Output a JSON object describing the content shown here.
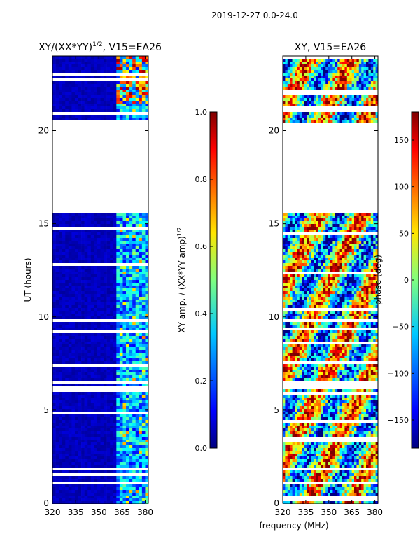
{
  "suptitle": "2019-12-27 0.0-24.0",
  "shared_xlabel": "frequency (MHz)",
  "chart_data": [
    {
      "type": "heatmap",
      "title_main": "XY/(XX*YY)",
      "title_sup": "1/2",
      "title_rest": ", V15=EA26",
      "ylabel": "UT (hours)",
      "xlim": [
        320,
        382
      ],
      "ylim": [
        0,
        24
      ],
      "xticks": [
        320,
        335,
        350,
        365,
        380
      ],
      "yticks": [
        0,
        5,
        10,
        15,
        20
      ],
      "data_gap_hours": [
        15.6,
        20.5
      ],
      "colorbar": {
        "label_main": "XY amp. / (XX*YY amp)",
        "label_sup": "1/2",
        "range": [
          0.0,
          1.0
        ],
        "ticks": [
          "0.0",
          "0.2",
          "0.4",
          "0.6",
          "0.8",
          "1.0"
        ],
        "colormap": "jet"
      }
    },
    {
      "type": "heatmap",
      "title": "XY, V15=EA26",
      "xlim": [
        320,
        382
      ],
      "ylim": [
        0,
        24
      ],
      "xticks": [
        320,
        335,
        350,
        365,
        380
      ],
      "yticks": [
        0,
        5,
        10,
        15,
        20
      ],
      "data_gap_hours": [
        15.6,
        20.5
      ],
      "colorbar": {
        "label": "phase (deg)",
        "range": [
          -180,
          180
        ],
        "ticks": [
          "150",
          "100",
          "50",
          "0",
          "−50",
          "−100",
          "−150"
        ],
        "colormap": "jet"
      }
    }
  ]
}
